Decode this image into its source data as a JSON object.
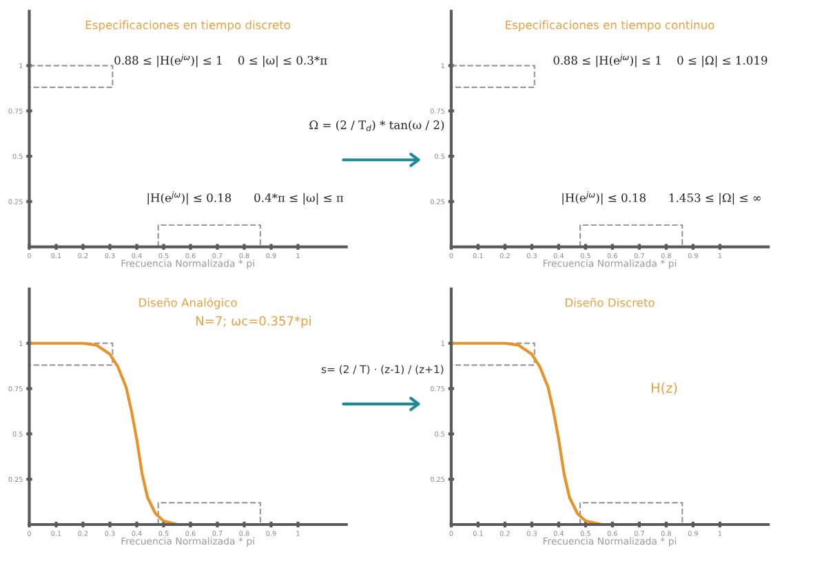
{
  "chart_data": [
    {
      "type": "line",
      "title": "Especificaciones en tiempo discreto",
      "xlabel": "Frecuencia Normalizada * pi",
      "xlim": [
        0,
        1.18
      ],
      "ylim": [
        0,
        1.3
      ],
      "xticks": [
        0,
        0.1,
        0.2,
        0.3,
        0.4,
        0.5,
        0.6,
        0.7,
        0.8,
        0.9,
        1
      ],
      "yticks": [
        0.25,
        0.5,
        0.75,
        1
      ],
      "grid": false,
      "legend": false,
      "series": [
        {
          "color": "#9a9a9a",
          "line_style": "dashed",
          "x": [
            0,
            0.31,
            0.31,
            0
          ],
          "values": [
            1,
            1,
            0.88,
            0.88
          ]
        },
        {
          "color": "#9a9a9a",
          "line_style": "dashed",
          "x": [
            0.48,
            0.48,
            0.86,
            0.86
          ],
          "values": [
            0,
            0.12,
            0.12,
            0
          ]
        }
      ],
      "annotations": [
        "0.88 ≤ |H(e$^{jω}$)| ≤ 1    0 ≤ |ω| ≤ 0.3*π",
        "|H(e$^{jω}$)| ≤ 0.18      0.4*π ≤ |ω| ≤ π",
        "Ω = (2 / T$_{d}$) * tan(ω / 2)"
      ]
    },
    {
      "type": "line",
      "title": "Especificaciones en tiempo continuo",
      "xlabel": "Frecuencia Normalizada * pi",
      "xlim": [
        0,
        1.18
      ],
      "ylim": [
        0,
        1.3
      ],
      "xticks": [
        0,
        0.1,
        0.2,
        0.3,
        0.4,
        0.5,
        0.6,
        0.7,
        0.8,
        0.9,
        1
      ],
      "yticks": [
        0.25,
        0.5,
        0.75,
        1
      ],
      "grid": false,
      "legend": false,
      "series": [
        {
          "color": "#9a9a9a",
          "line_style": "dashed",
          "x": [
            0,
            0.31,
            0.31,
            0
          ],
          "values": [
            1,
            1,
            0.88,
            0.88
          ]
        },
        {
          "color": "#9a9a9a",
          "line_style": "dashed",
          "x": [
            0.48,
            0.48,
            0.86,
            0.86
          ],
          "values": [
            0,
            0.12,
            0.12,
            0
          ]
        }
      ],
      "annotations": [
        "0.88 ≤ |H(e$^{jω}$)| ≤ 1    0 ≤ |Ω| ≤ 1.019",
        "|H(e$^{jω}$)| ≤ 0.18      1.453 ≤ |Ω| ≤ ∞"
      ]
    },
    {
      "type": "line",
      "title": "Diseño Analógico",
      "xlabel": "Frecuencia Normalizada * pi",
      "xlim": [
        0,
        1.18
      ],
      "ylim": [
        0,
        1.3
      ],
      "xticks": [
        0,
        0.1,
        0.2,
        0.3,
        0.4,
        0.5,
        0.6,
        0.7,
        0.8,
        0.9,
        1
      ],
      "yticks": [
        0.25,
        0.5,
        0.75,
        1
      ],
      "grid": false,
      "legend": false,
      "series": [
        {
          "color": "#9a9a9a",
          "line_style": "dashed",
          "x": [
            0,
            0.31,
            0.31,
            0
          ],
          "values": [
            1,
            1,
            0.88,
            0.88
          ]
        },
        {
          "color": "#9a9a9a",
          "line_style": "dashed",
          "x": [
            0.48,
            0.48,
            0.86,
            0.86
          ],
          "values": [
            0,
            0.12,
            0.12,
            0
          ]
        },
        {
          "color": "#e8922a",
          "line_style": "solid",
          "x": [
            0,
            0.1,
            0.2,
            0.25,
            0.3,
            0.33,
            0.36,
            0.38,
            0.4,
            0.42,
            0.44,
            0.47,
            0.5,
            0.55
          ],
          "values": [
            1,
            1,
            1,
            0.99,
            0.94,
            0.87,
            0.76,
            0.63,
            0.47,
            0.28,
            0.15,
            0.06,
            0.02,
            0
          ]
        }
      ],
      "annotations": [
        "N=7; ωc=0.357*pi",
        "s= (2 / T) · (z-1) / (z+1)"
      ]
    },
    {
      "type": "line",
      "title": "Diseño Discreto",
      "xlabel": "Frecuencia Normalizada * pi",
      "xlim": [
        0,
        1.18
      ],
      "ylim": [
        0,
        1.3
      ],
      "xticks": [
        0,
        0.1,
        0.2,
        0.3,
        0.4,
        0.5,
        0.6,
        0.7,
        0.8,
        0.9,
        1
      ],
      "yticks": [
        0.25,
        0.5,
        0.75,
        1
      ],
      "grid": false,
      "legend": false,
      "series": [
        {
          "color": "#9a9a9a",
          "line_style": "dashed",
          "x": [
            0,
            0.31,
            0.31,
            0
          ],
          "values": [
            1,
            1,
            0.88,
            0.88
          ]
        },
        {
          "color": "#9a9a9a",
          "line_style": "dashed",
          "x": [
            0.48,
            0.48,
            0.86,
            0.86
          ],
          "values": [
            0,
            0.12,
            0.12,
            0
          ]
        },
        {
          "color": "#e8922a",
          "line_style": "solid",
          "x": [
            0,
            0.1,
            0.2,
            0.25,
            0.3,
            0.33,
            0.36,
            0.38,
            0.4,
            0.42,
            0.44,
            0.47,
            0.5,
            0.56
          ],
          "values": [
            1,
            1,
            1,
            0.99,
            0.94,
            0.87,
            0.76,
            0.63,
            0.47,
            0.28,
            0.15,
            0.06,
            0.02,
            0
          ]
        }
      ],
      "annotations": [
        "H(z)"
      ]
    }
  ]
}
